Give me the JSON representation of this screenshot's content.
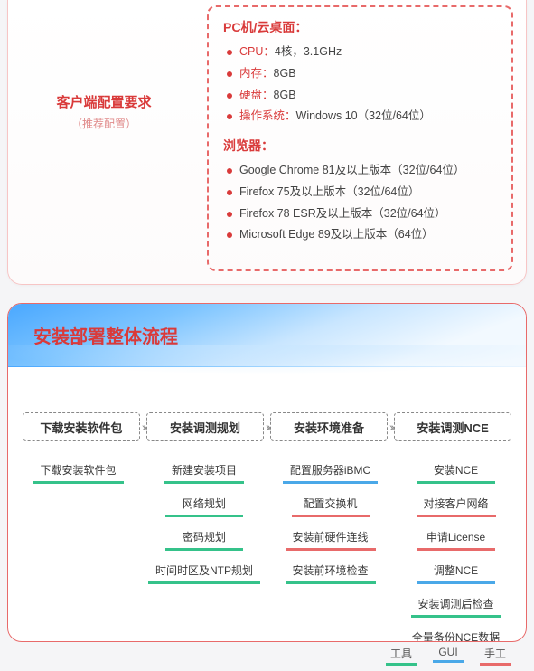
{
  "colors": {
    "accent_red": "#d93a3a",
    "dash_red": "#e86a6a",
    "panel_border": "#f7c5c5",
    "gui_blue": "#4aa8e8",
    "tool_green": "#35c28a",
    "manual_red": "#e86a6a",
    "background": "#f5f5f7"
  },
  "requirements": {
    "label_title": "客户端配置要求",
    "label_subtitle": "（推荐配置）",
    "sections": [
      {
        "title": "PC机/云桌面：",
        "items": [
          {
            "k": "CPU：",
            "v": "4核，3.1GHz"
          },
          {
            "k": "内存：",
            "v": "8GB"
          },
          {
            "k": "硬盘：",
            "v": "8GB"
          },
          {
            "k": "操作系统：",
            "v": "Windows 10（32位/64位）"
          }
        ]
      },
      {
        "title": "浏览器：",
        "items": [
          {
            "k": "",
            "v": "Google Chrome 81及以上版本（32位/64位）"
          },
          {
            "k": "",
            "v": "Firefox 75及以上版本（32位/64位）"
          },
          {
            "k": "",
            "v": "Firefox 78 ESR及以上版本（32位/64位）"
          },
          {
            "k": "",
            "v": "Microsoft Edge 89及以上版本（64位）"
          }
        ]
      }
    ]
  },
  "flow": {
    "title": "安装部署整体流程",
    "steps": [
      "下载安装软件包",
      "安装调测规划",
      "安装环境准备",
      "安装调测NCE"
    ],
    "columns": [
      [
        {
          "label": "下载安装软件包",
          "kind": "tool"
        }
      ],
      [
        {
          "label": "新建安装项目",
          "kind": "tool"
        },
        {
          "label": "网络规划",
          "kind": "tool"
        },
        {
          "label": "密码规划",
          "kind": "tool"
        },
        {
          "label": "时间时区及NTP规划",
          "kind": "tool"
        }
      ],
      [
        {
          "label": "配置服务器iBMC",
          "kind": "gui"
        },
        {
          "label": "配置交换机",
          "kind": "man"
        },
        {
          "label": "安装前硬件连线",
          "kind": "man"
        },
        {
          "label": "安装前环境检查",
          "kind": "tool"
        }
      ],
      [
        {
          "label": "安装NCE",
          "kind": "tool"
        },
        {
          "label": "对接客户网络",
          "kind": "man"
        },
        {
          "label": "申请License",
          "kind": "man"
        },
        {
          "label": "调整NCE",
          "kind": "gui"
        },
        {
          "label": "安装调测后检查",
          "kind": "tool"
        },
        {
          "label": "全量备份NCE数据",
          "kind": "gui"
        }
      ]
    ]
  },
  "legend": {
    "items": [
      {
        "label": "工具",
        "kind": "tool"
      },
      {
        "label": "GUI",
        "kind": "gui"
      },
      {
        "label": "手工",
        "kind": "man"
      }
    ]
  }
}
